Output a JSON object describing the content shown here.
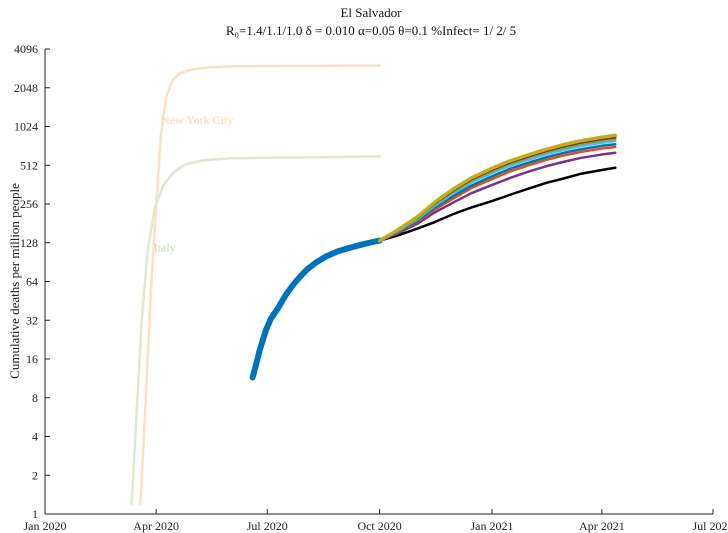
{
  "chart_data": {
    "type": "line",
    "title": "El Salvador",
    "subtitle": "R₀=1.4/1.1/1.0  δ = 0.010  α=0.05  θ=0.1  %Infect= 1/ 2/ 5",
    "ylabel": "Cumulative deaths per million people",
    "xlabel": "",
    "y_scale": "log2",
    "ylim": [
      1,
      4096
    ],
    "y_ticks": [
      1,
      2,
      4,
      8,
      16,
      32,
      64,
      128,
      256,
      512,
      1024,
      2048,
      4096
    ],
    "y_tick_labels": [
      "1",
      "2",
      "4",
      "8",
      "16",
      "32",
      "64",
      "128",
      "256",
      "512",
      "1024",
      "2048",
      "4096"
    ],
    "xlim": [
      "2020-01-01",
      "2021-07-01"
    ],
    "x_ticks": [
      "2020-01-01",
      "2020-04-01",
      "2020-07-01",
      "2020-10-01",
      "2021-01-01",
      "2021-04-01",
      "2021-07-01"
    ],
    "x_tick_labels": [
      "Jan 2020",
      "Apr 2020",
      "Jul 2020",
      "Oct 2020",
      "Jan 2021",
      "Apr 2021",
      "Jul 2021"
    ],
    "grid": false,
    "annotations": [
      {
        "text": "New York City",
        "x": "2020-04-05",
        "y": 1150,
        "color": "#f6d7b4"
      },
      {
        "text": "Italy",
        "x": "2020-03-30",
        "y": 118,
        "color": "#c9ddb0"
      }
    ],
    "series": [
      {
        "name": "New York City",
        "color": "#f9e1c8",
        "width": 2.5,
        "points": [
          [
            "2020-03-19",
            1.2
          ],
          [
            "2020-03-22",
            4
          ],
          [
            "2020-03-25",
            15
          ],
          [
            "2020-03-28",
            60
          ],
          [
            "2020-04-01",
            250
          ],
          [
            "2020-04-05",
            900
          ],
          [
            "2020-04-09",
            1700
          ],
          [
            "2020-04-14",
            2300
          ],
          [
            "2020-04-20",
            2650
          ],
          [
            "2020-05-01",
            2850
          ],
          [
            "2020-05-15",
            2950
          ],
          [
            "2020-06-01",
            3000
          ],
          [
            "2020-07-01",
            3020
          ],
          [
            "2020-08-01",
            3030
          ],
          [
            "2020-10-01",
            3050
          ]
        ]
      },
      {
        "name": "Italy",
        "color": "#dde9d2",
        "width": 2.5,
        "points": [
          [
            "2020-03-12",
            1.2
          ],
          [
            "2020-03-16",
            6
          ],
          [
            "2020-03-20",
            30
          ],
          [
            "2020-03-25",
            110
          ],
          [
            "2020-03-31",
            240
          ],
          [
            "2020-04-07",
            360
          ],
          [
            "2020-04-15",
            450
          ],
          [
            "2020-04-25",
            520
          ],
          [
            "2020-05-10",
            560
          ],
          [
            "2020-06-01",
            580
          ],
          [
            "2020-07-01",
            585
          ],
          [
            "2020-08-01",
            590
          ],
          [
            "2020-10-01",
            600
          ]
        ]
      },
      {
        "color": "#0072bd",
        "width": 6,
        "points": [
          [
            "2020-06-19",
            11.5
          ],
          [
            "2020-06-21",
            13.5
          ],
          [
            "2020-06-25",
            19
          ],
          [
            "2020-06-30",
            27
          ],
          [
            "2020-07-04",
            33
          ],
          [
            "2020-07-10",
            40
          ],
          [
            "2020-07-16",
            50
          ],
          [
            "2020-07-22",
            60
          ],
          [
            "2020-07-28",
            70
          ],
          [
            "2020-08-03",
            80
          ],
          [
            "2020-08-10",
            90
          ],
          [
            "2020-08-18",
            100
          ],
          [
            "2020-08-28",
            110
          ],
          [
            "2020-09-08",
            118
          ],
          [
            "2020-09-18",
            125
          ],
          [
            "2020-09-26",
            130
          ],
          [
            "2020-10-01",
            133
          ]
        ]
      },
      {
        "color": "#000000",
        "width": 2.5,
        "points": [
          [
            "2020-10-01",
            133
          ],
          [
            "2020-10-15",
            145
          ],
          [
            "2020-11-01",
            165
          ],
          [
            "2020-11-15",
            185
          ],
          [
            "2020-12-01",
            215
          ],
          [
            "2020-12-15",
            240
          ],
          [
            "2021-01-01",
            270
          ],
          [
            "2021-01-15",
            300
          ],
          [
            "2021-02-01",
            340
          ],
          [
            "2021-02-15",
            375
          ],
          [
            "2021-03-01",
            405
          ],
          [
            "2021-03-15",
            440
          ],
          [
            "2021-04-01",
            470
          ],
          [
            "2021-04-12",
            490
          ]
        ]
      },
      {
        "color": "#7e2f8e",
        "width": 2.5,
        "points": [
          [
            "2020-10-01",
            133
          ],
          [
            "2020-10-15",
            150
          ],
          [
            "2020-11-01",
            180
          ],
          [
            "2020-11-15",
            220
          ],
          [
            "2020-12-01",
            265
          ],
          [
            "2020-12-15",
            310
          ],
          [
            "2021-01-01",
            360
          ],
          [
            "2021-01-15",
            405
          ],
          [
            "2021-02-01",
            460
          ],
          [
            "2021-02-15",
            505
          ],
          [
            "2021-03-01",
            545
          ],
          [
            "2021-03-15",
            585
          ],
          [
            "2021-04-01",
            620
          ],
          [
            "2021-04-12",
            640
          ]
        ]
      },
      {
        "color": "#d95319",
        "width": 2.5,
        "points": [
          [
            "2020-10-01",
            133
          ],
          [
            "2020-10-15",
            152
          ],
          [
            "2020-11-01",
            186
          ],
          [
            "2020-11-15",
            232
          ],
          [
            "2020-12-01",
            285
          ],
          [
            "2020-12-15",
            340
          ],
          [
            "2021-01-01",
            400
          ],
          [
            "2021-01-15",
            455
          ],
          [
            "2021-02-01",
            515
          ],
          [
            "2021-02-15",
            565
          ],
          [
            "2021-03-01",
            610
          ],
          [
            "2021-03-15",
            650
          ],
          [
            "2021-04-01",
            690
          ],
          [
            "2021-04-12",
            710
          ]
        ]
      },
      {
        "color": "#0072bd",
        "width": 2.5,
        "points": [
          [
            "2020-10-01",
            133
          ],
          [
            "2020-10-15",
            154
          ],
          [
            "2020-11-01",
            190
          ],
          [
            "2020-11-15",
            240
          ],
          [
            "2020-12-01",
            298
          ],
          [
            "2020-12-15",
            355
          ],
          [
            "2021-01-01",
            420
          ],
          [
            "2021-01-15",
            478
          ],
          [
            "2021-02-01",
            540
          ],
          [
            "2021-02-15",
            592
          ],
          [
            "2021-03-01",
            640
          ],
          [
            "2021-03-15",
            682
          ],
          [
            "2021-04-01",
            725
          ],
          [
            "2021-04-12",
            745
          ]
        ]
      },
      {
        "color": "#4dbeee",
        "width": 2.5,
        "points": [
          [
            "2020-10-01",
            133
          ],
          [
            "2020-10-15",
            156
          ],
          [
            "2020-11-01",
            195
          ],
          [
            "2020-11-15",
            248
          ],
          [
            "2020-12-01",
            312
          ],
          [
            "2020-12-15",
            375
          ],
          [
            "2021-01-01",
            445
          ],
          [
            "2021-01-15",
            505
          ],
          [
            "2021-02-01",
            570
          ],
          [
            "2021-02-15",
            625
          ],
          [
            "2021-03-01",
            675
          ],
          [
            "2021-03-15",
            720
          ],
          [
            "2021-04-01",
            765
          ],
          [
            "2021-04-12",
            790
          ]
        ]
      },
      {
        "color": "#77ac30",
        "width": 2.5,
        "points": [
          [
            "2020-10-01",
            133
          ],
          [
            "2020-10-15",
            157
          ],
          [
            "2020-11-01",
            198
          ],
          [
            "2020-11-15",
            254
          ],
          [
            "2020-12-01",
            322
          ],
          [
            "2020-12-15",
            388
          ],
          [
            "2021-01-01",
            460
          ],
          [
            "2021-01-15",
            522
          ],
          [
            "2021-02-01",
            590
          ],
          [
            "2021-02-15",
            648
          ],
          [
            "2021-03-01",
            700
          ],
          [
            "2021-03-15",
            748
          ],
          [
            "2021-04-01",
            795
          ],
          [
            "2021-04-12",
            820
          ]
        ]
      },
      {
        "color": "#a2142f",
        "width": 2.5,
        "points": [
          [
            "2020-10-01",
            133
          ],
          [
            "2020-10-15",
            158
          ],
          [
            "2020-11-01",
            201
          ],
          [
            "2020-11-15",
            259
          ],
          [
            "2020-12-01",
            330
          ],
          [
            "2020-12-15",
            398
          ],
          [
            "2021-01-01",
            472
          ],
          [
            "2021-01-15",
            536
          ],
          [
            "2021-02-01",
            605
          ],
          [
            "2021-02-15",
            665
          ],
          [
            "2021-03-01",
            720
          ],
          [
            "2021-03-15",
            770
          ],
          [
            "2021-04-01",
            818
          ],
          [
            "2021-04-12",
            845
          ]
        ]
      },
      {
        "color": "#bdb01a",
        "width": 3.5,
        "points": [
          [
            "2020-10-01",
            133
          ],
          [
            "2020-10-15",
            159
          ],
          [
            "2020-11-01",
            204
          ],
          [
            "2020-11-15",
            264
          ],
          [
            "2020-12-01",
            338
          ],
          [
            "2020-12-15",
            408
          ],
          [
            "2021-01-01",
            485
          ],
          [
            "2021-01-15",
            551
          ],
          [
            "2021-02-01",
            622
          ],
          [
            "2021-02-15",
            684
          ],
          [
            "2021-03-01",
            742
          ],
          [
            "2021-03-15",
            794
          ],
          [
            "2021-04-01",
            845
          ],
          [
            "2021-04-12",
            875
          ]
        ]
      }
    ]
  }
}
